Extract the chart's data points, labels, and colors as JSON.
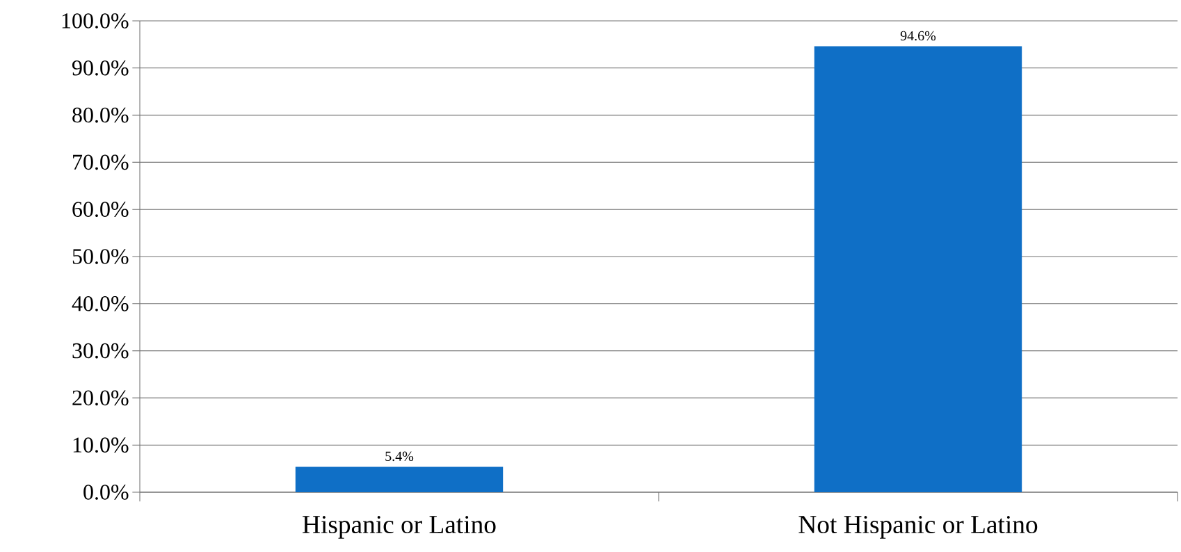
{
  "chart_data": {
    "type": "bar",
    "categories": [
      "Hispanic or Latino",
      "Not Hispanic or Latino"
    ],
    "values": [
      5.4,
      94.6
    ],
    "color": "#0f6fc6",
    "value_labels": [
      "5.4%",
      "94.6%"
    ],
    "ylim": [
      0,
      100
    ],
    "yticks": [
      {
        "value": 0,
        "label": "0.0%"
      },
      {
        "value": 10,
        "label": "10.0%"
      },
      {
        "value": 20,
        "label": "20.0%"
      },
      {
        "value": 30,
        "label": "30.0%"
      },
      {
        "value": 40,
        "label": "40.0%"
      },
      {
        "value": 50,
        "label": "50.0%"
      },
      {
        "value": 60,
        "label": "60.0%"
      },
      {
        "value": 70,
        "label": "70.0%"
      },
      {
        "value": 80,
        "label": "80.0%"
      },
      {
        "value": 90,
        "label": "90.0%"
      },
      {
        "value": 100,
        "label": "100.0%"
      }
    ],
    "grid": "y"
  }
}
